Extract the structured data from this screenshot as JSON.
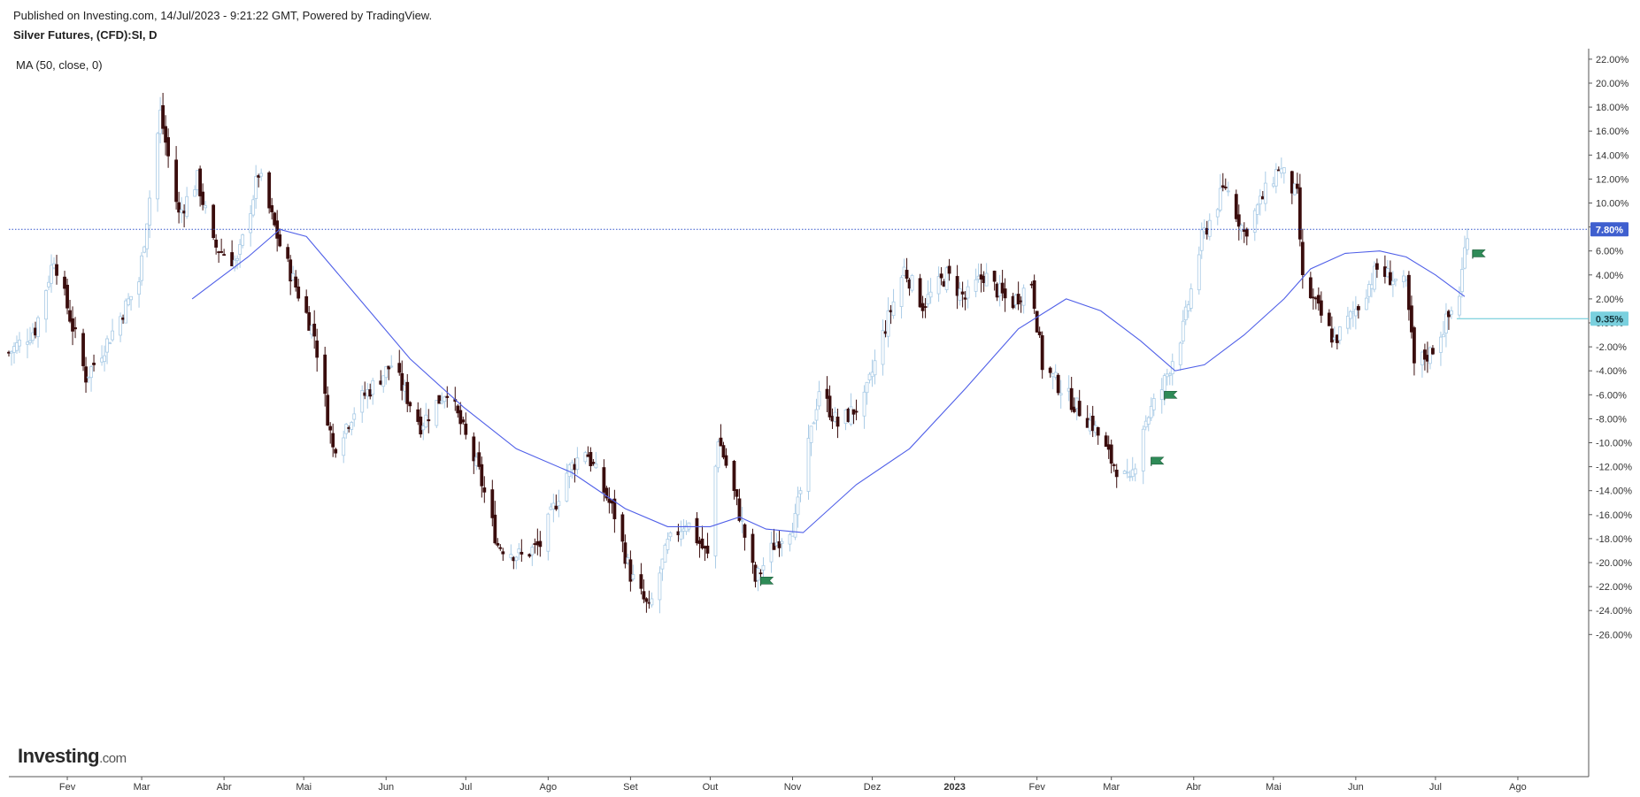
{
  "header": {
    "published": "Published on Investing.com, 14/Jul/2023 - 9:21:22 GMT, Powered by TradingView.",
    "symbol": "Silver Futures, (CFD):SI, D",
    "indicator": "MA (50, close, 0)"
  },
  "logo": {
    "main": "Investing",
    "suffix": ".com"
  },
  "colors": {
    "up": "#a9cbe6",
    "down": "#3a0d0d",
    "ma": "#4f5fe8",
    "last_price_line": "#3355cc",
    "last_price_badge": "#3f5fcf",
    "ref_line": "#5fc6d6",
    "ref_badge": "#7ad0de",
    "flag": "#2e8b57"
  },
  "chart_data": {
    "type": "candlestick",
    "title": "Silver Futures, (CFD):SI, D",
    "y_unit": "%",
    "ylim": [
      -27,
      23.5
    ],
    "y_ticks": [
      "22.00%",
      "20.00%",
      "18.00%",
      "16.00%",
      "14.00%",
      "12.00%",
      "10.00%",
      "8.00%",
      "6.00%",
      "4.00%",
      "2.00%",
      "0.00%",
      "-2.00%",
      "-4.00%",
      "-6.00%",
      "-8.00%",
      "-10.00%",
      "-12.00%",
      "-14.00%",
      "-16.00%",
      "-18.00%",
      "-20.00%",
      "-22.00%",
      "-24.00%",
      "-26.00%"
    ],
    "x_ticks": [
      {
        "label": "Fev",
        "date": "2022-02-01"
      },
      {
        "label": "Mar",
        "date": "2022-03-01"
      },
      {
        "label": "Abr",
        "date": "2022-04-01"
      },
      {
        "label": "Mai",
        "date": "2022-05-01"
      },
      {
        "label": "Jun",
        "date": "2022-06-01"
      },
      {
        "label": "Jul",
        "date": "2022-07-01"
      },
      {
        "label": "Ago",
        "date": "2022-08-01"
      },
      {
        "label": "Set",
        "date": "2022-09-01"
      },
      {
        "label": "Out",
        "date": "2022-10-01"
      },
      {
        "label": "Nov",
        "date": "2022-11-01"
      },
      {
        "label": "Dez",
        "date": "2022-12-01"
      },
      {
        "label": "2023",
        "date": "2023-01-01",
        "bold": true
      },
      {
        "label": "Fev",
        "date": "2023-02-01"
      },
      {
        "label": "Mar",
        "date": "2023-03-01"
      },
      {
        "label": "Abr",
        "date": "2023-04-01"
      },
      {
        "label": "Mai",
        "date": "2023-05-01"
      },
      {
        "label": "Jun",
        "date": "2023-06-01"
      },
      {
        "label": "Jul",
        "date": "2023-07-01"
      },
      {
        "label": "Ago",
        "date": "2023-08-01"
      }
    ],
    "date_range": [
      "2022-01-10",
      "2023-08-20"
    ],
    "price_path": [
      {
        "date": "2022-01-10",
        "y": -2.5
      },
      {
        "date": "2022-01-20",
        "y": -0.5
      },
      {
        "date": "2022-01-27",
        "y": 5.5
      },
      {
        "date": "2022-02-08",
        "y": -4.5
      },
      {
        "date": "2022-02-15",
        "y": -2.0
      },
      {
        "date": "2022-02-28",
        "y": 3.5
      },
      {
        "date": "2022-03-08",
        "y": 17.5
      },
      {
        "date": "2022-03-15",
        "y": 9.0
      },
      {
        "date": "2022-03-22",
        "y": 12.0
      },
      {
        "date": "2022-03-28",
        "y": 6.5
      },
      {
        "date": "2022-04-06",
        "y": 5.0
      },
      {
        "date": "2022-04-14",
        "y": 12.5
      },
      {
        "date": "2022-04-22",
        "y": 6.5
      },
      {
        "date": "2022-05-05",
        "y": -1.0
      },
      {
        "date": "2022-05-12",
        "y": -10.5
      },
      {
        "date": "2022-05-22",
        "y": -6.5
      },
      {
        "date": "2022-06-03",
        "y": -3.5
      },
      {
        "date": "2022-06-14",
        "y": -8.5
      },
      {
        "date": "2022-06-24",
        "y": -5.5
      },
      {
        "date": "2022-07-06",
        "y": -12.5
      },
      {
        "date": "2022-07-13",
        "y": -18.5
      },
      {
        "date": "2022-07-22",
        "y": -19.5
      },
      {
        "date": "2022-07-29",
        "y": -18.5
      },
      {
        "date": "2022-08-08",
        "y": -12.5
      },
      {
        "date": "2022-08-15",
        "y": -10.5
      },
      {
        "date": "2022-08-26",
        "y": -16.0
      },
      {
        "date": "2022-09-01",
        "y": -21.0
      },
      {
        "date": "2022-09-08",
        "y": -24.0
      },
      {
        "date": "2022-09-15",
        "y": -18.5
      },
      {
        "date": "2022-09-22",
        "y": -16.5
      },
      {
        "date": "2022-09-30",
        "y": -19.5
      },
      {
        "date": "2022-10-04",
        "y": -9.5
      },
      {
        "date": "2022-10-11",
        "y": -15.0
      },
      {
        "date": "2022-10-18",
        "y": -21.5
      },
      {
        "date": "2022-10-25",
        "y": -18.5
      },
      {
        "date": "2022-11-02",
        "y": -16.5
      },
      {
        "date": "2022-11-11",
        "y": -5.5
      },
      {
        "date": "2022-11-18",
        "y": -8.5
      },
      {
        "date": "2022-11-28",
        "y": -6.5
      },
      {
        "date": "2022-12-05",
        "y": -1.0
      },
      {
        "date": "2022-12-13",
        "y": 4.5
      },
      {
        "date": "2022-12-20",
        "y": 1.5
      },
      {
        "date": "2022-12-29",
        "y": 4.0
      },
      {
        "date": "2023-01-05",
        "y": 2.0
      },
      {
        "date": "2023-01-12",
        "y": 4.0
      },
      {
        "date": "2023-01-22",
        "y": 1.5
      },
      {
        "date": "2023-01-30",
        "y": 3.5
      },
      {
        "date": "2023-02-03",
        "y": -3.5
      },
      {
        "date": "2023-02-14",
        "y": -6.5
      },
      {
        "date": "2023-02-22",
        "y": -8.5
      },
      {
        "date": "2023-03-01",
        "y": -11.5
      },
      {
        "date": "2023-03-08",
        "y": -13.5
      },
      {
        "date": "2023-03-13",
        "y": -8.5
      },
      {
        "date": "2023-03-20",
        "y": -5.5
      },
      {
        "date": "2023-03-28",
        "y": -0.5
      },
      {
        "date": "2023-04-04",
        "y": 7.0
      },
      {
        "date": "2023-04-13",
        "y": 11.5
      },
      {
        "date": "2023-04-20",
        "y": 7.5
      },
      {
        "date": "2023-05-03",
        "y": 13.0
      },
      {
        "date": "2023-05-10",
        "y": 10.5
      },
      {
        "date": "2023-05-12",
        "y": 3.5
      },
      {
        "date": "2023-05-24",
        "y": -1.5
      },
      {
        "date": "2023-06-02",
        "y": 1.5
      },
      {
        "date": "2023-06-09",
        "y": 4.5
      },
      {
        "date": "2023-06-20",
        "y": 3.0
      },
      {
        "date": "2023-06-23",
        "y": -3.5
      },
      {
        "date": "2023-06-29",
        "y": -2.5
      },
      {
        "date": "2023-07-06",
        "y": 0.5
      },
      {
        "date": "2023-07-10",
        "y": 2.5
      },
      {
        "date": "2023-07-13",
        "y": 7.8
      }
    ],
    "ma_series": {
      "name": "MA (50, close, 0)",
      "points": [
        {
          "date": "2022-03-20",
          "y": 2.0
        },
        {
          "date": "2022-04-01",
          "y": 4.0
        },
        {
          "date": "2022-04-10",
          "y": 5.5
        },
        {
          "date": "2022-04-22",
          "y": 7.8
        },
        {
          "date": "2022-05-02",
          "y": 7.2
        },
        {
          "date": "2022-05-20",
          "y": 2.5
        },
        {
          "date": "2022-06-10",
          "y": -3.0
        },
        {
          "date": "2022-06-30",
          "y": -7.0
        },
        {
          "date": "2022-07-20",
          "y": -10.5
        },
        {
          "date": "2022-08-10",
          "y": -12.5
        },
        {
          "date": "2022-08-30",
          "y": -15.5
        },
        {
          "date": "2022-09-15",
          "y": -17.0
        },
        {
          "date": "2022-10-01",
          "y": -17.0
        },
        {
          "date": "2022-10-12",
          "y": -16.2
        },
        {
          "date": "2022-10-22",
          "y": -17.2
        },
        {
          "date": "2022-11-05",
          "y": -17.5
        },
        {
          "date": "2022-11-25",
          "y": -13.5
        },
        {
          "date": "2022-12-15",
          "y": -10.5
        },
        {
          "date": "2023-01-05",
          "y": -5.5
        },
        {
          "date": "2023-01-25",
          "y": -0.5
        },
        {
          "date": "2023-02-12",
          "y": 2.0
        },
        {
          "date": "2023-02-25",
          "y": 1.0
        },
        {
          "date": "2023-03-12",
          "y": -1.5
        },
        {
          "date": "2023-03-25",
          "y": -4.0
        },
        {
          "date": "2023-04-05",
          "y": -3.5
        },
        {
          "date": "2023-04-20",
          "y": -1.0
        },
        {
          "date": "2023-05-05",
          "y": 2.0
        },
        {
          "date": "2023-05-15",
          "y": 4.5
        },
        {
          "date": "2023-05-28",
          "y": 5.8
        },
        {
          "date": "2023-06-10",
          "y": 6.0
        },
        {
          "date": "2023-06-20",
          "y": 5.5
        },
        {
          "date": "2023-07-01",
          "y": 4.0
        },
        {
          "date": "2023-07-12",
          "y": 2.2
        }
      ]
    },
    "last_price": {
      "value": 7.8,
      "label": "7.80%"
    },
    "reference_line": {
      "value": 0.35,
      "label": "0.35%",
      "from_date": "2023-07-09"
    },
    "flags": [
      {
        "date": "2022-10-20",
        "y": -21.5
      },
      {
        "date": "2023-03-16",
        "y": -11.5
      },
      {
        "date": "2023-03-21",
        "y": -6.0
      },
      {
        "date": "2023-07-15",
        "y": 5.8
      }
    ],
    "grid": false
  }
}
